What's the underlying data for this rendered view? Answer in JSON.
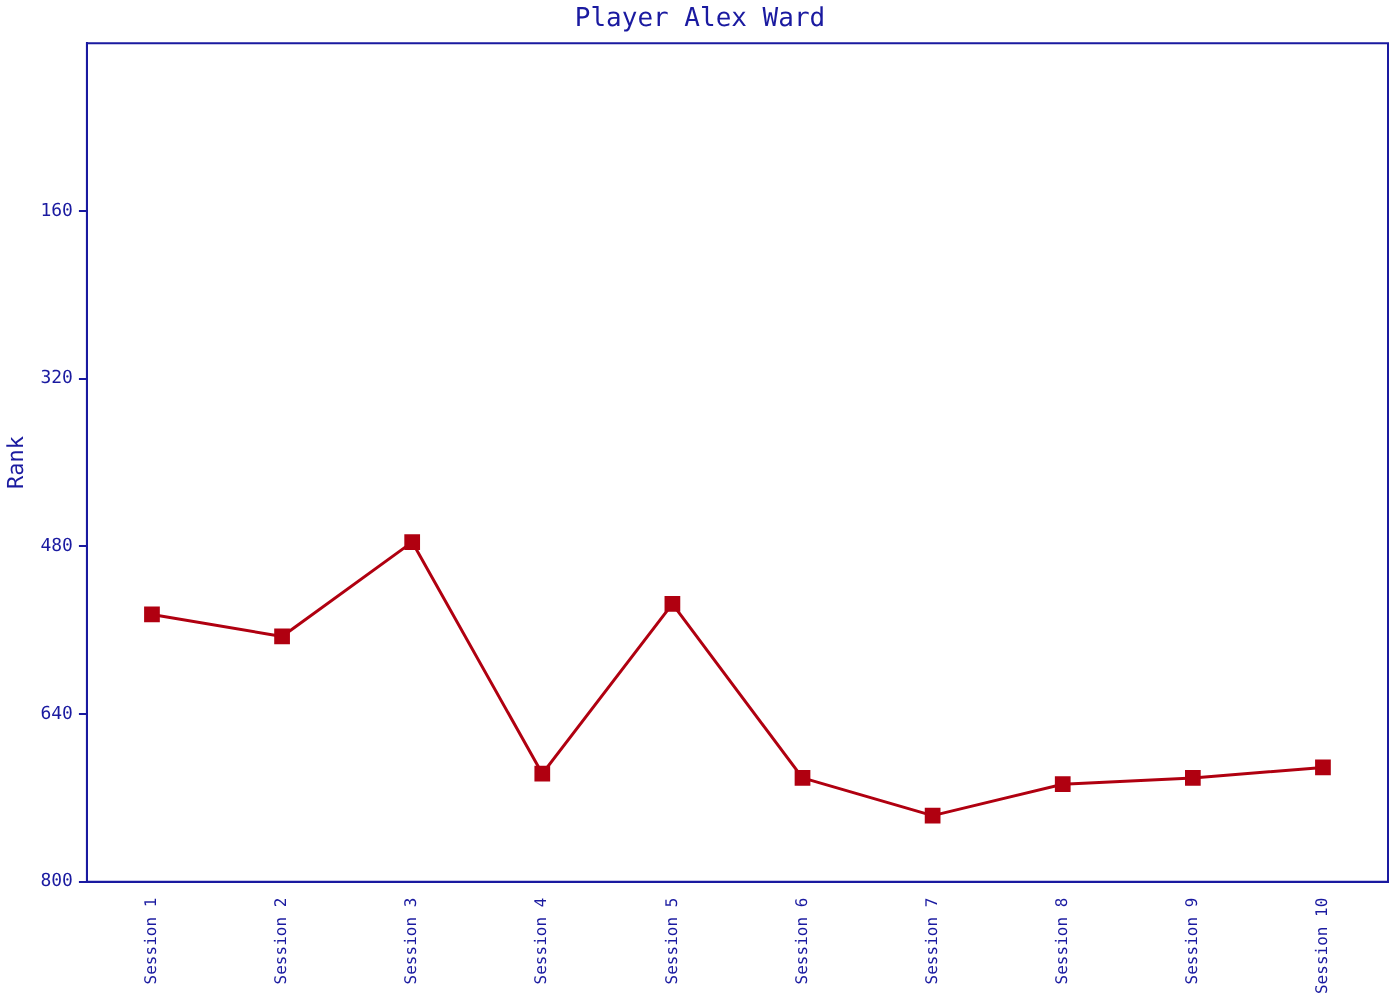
{
  "chart_data": {
    "type": "line",
    "title": "Player Alex Ward",
    "ylabel": "Rank",
    "categories": [
      "Session 1",
      "Session 2",
      "Session 3",
      "Session 4",
      "Session 5",
      "Session 6",
      "Session 7",
      "Session 8",
      "Session 9",
      "Session 10"
    ],
    "series": [
      {
        "color": "#b00010",
        "values": [
          545,
          566,
          476,
          697,
          535,
          701,
          737,
          707,
          701,
          691
        ]
      }
    ],
    "ylim": [
      800,
      0
    ],
    "yticks": [
      160,
      320,
      480,
      640,
      800
    ],
    "grid": false,
    "legend": false,
    "marker": "square",
    "line_style": "solid"
  }
}
